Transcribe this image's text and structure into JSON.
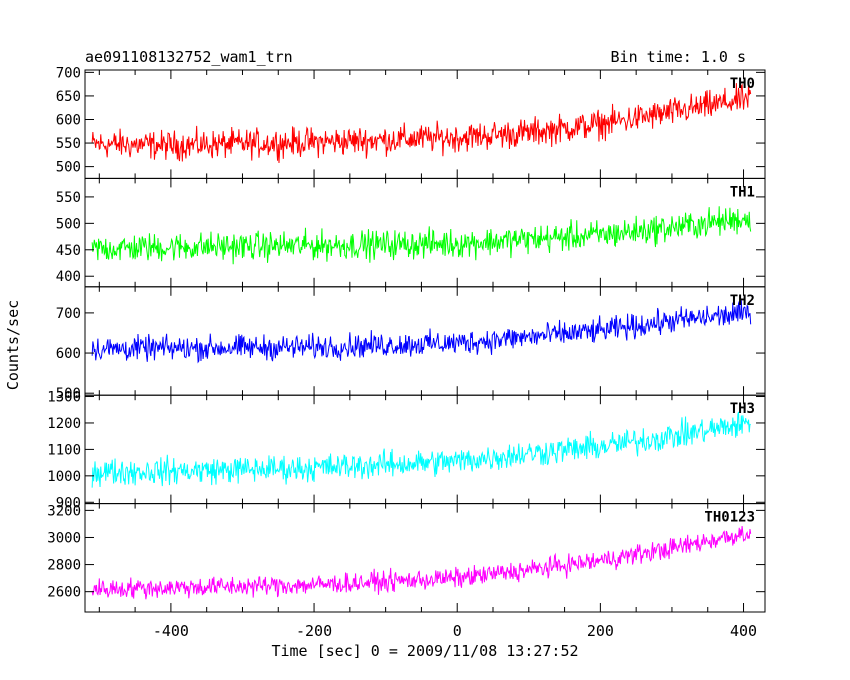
{
  "chart_data": {
    "type": "line",
    "title": "ae091108132752_wam1_trn",
    "subtitle": "Bin time: 1.0 s",
    "xlabel": "Time [sec] 0 = 2009/11/08 13:27:52",
    "ylabel": "Counts/sec",
    "xlim": [
      -520,
      430
    ],
    "x_ticks": [
      "-400",
      "-200",
      "0",
      "200",
      "400"
    ],
    "x_tick_values": [
      -400,
      -200,
      0,
      200,
      400
    ],
    "data_x_range": [
      -510,
      410
    ],
    "grid": false,
    "panels": [
      {
        "name": "TH0",
        "color": "#ff0000",
        "ylim": [
          475,
          705
        ],
        "y_ticks": [
          "500",
          "550",
          "600",
          "650",
          "700"
        ],
        "y_tick_values": [
          500,
          550,
          600,
          650,
          700
        ],
        "trend_x": [
          -510,
          -400,
          -200,
          0,
          100,
          200,
          300,
          410
        ],
        "trend_y": [
          548,
          545,
          552,
          562,
          572,
          590,
          615,
          645
        ],
        "noise_amplitude": 45
      },
      {
        "name": "TH1",
        "color": "#00ff00",
        "ylim": [
          380,
          585
        ],
        "y_ticks": [
          "400",
          "450",
          "500",
          "550"
        ],
        "y_tick_values": [
          400,
          450,
          500,
          550
        ],
        "trend_x": [
          -510,
          -400,
          -200,
          0,
          200,
          300,
          410
        ],
        "trend_y": [
          452,
          455,
          458,
          462,
          478,
          492,
          510
        ],
        "noise_amplitude": 40
      },
      {
        "name": "TH2",
        "color": "#0000ff",
        "ylim": [
          495,
          765
        ],
        "y_ticks": [
          "500",
          "600",
          "700"
        ],
        "y_tick_values": [
          500,
          600,
          700
        ],
        "trend_x": [
          -510,
          -400,
          -200,
          0,
          200,
          300,
          410
        ],
        "trend_y": [
          610,
          612,
          615,
          625,
          655,
          680,
          700
        ],
        "noise_amplitude": 45
      },
      {
        "name": "TH3",
        "color": "#00ffff",
        "ylim": [
          895,
          1305
        ],
        "y_ticks": [
          "900",
          "1000",
          "1100",
          "1200",
          "1300"
        ],
        "y_tick_values": [
          900,
          1000,
          1100,
          1200,
          1300
        ],
        "trend_x": [
          -510,
          -400,
          -200,
          0,
          100,
          200,
          300,
          410
        ],
        "trend_y": [
          1015,
          1018,
          1030,
          1055,
          1085,
          1110,
          1150,
          1200
        ],
        "noise_amplitude": 75
      },
      {
        "name": "TH0123",
        "color": "#ff00ff",
        "ylim": [
          2450,
          3250
        ],
        "y_ticks": [
          "2600",
          "2800",
          "3000",
          "3200"
        ],
        "y_tick_values": [
          2600,
          2800,
          3000,
          3200
        ],
        "trend_x": [
          -510,
          -400,
          -200,
          0,
          100,
          200,
          300,
          410
        ],
        "trend_y": [
          2620,
          2630,
          2650,
          2700,
          2760,
          2830,
          2920,
          3040
        ],
        "noise_amplitude": 110
      }
    ]
  }
}
